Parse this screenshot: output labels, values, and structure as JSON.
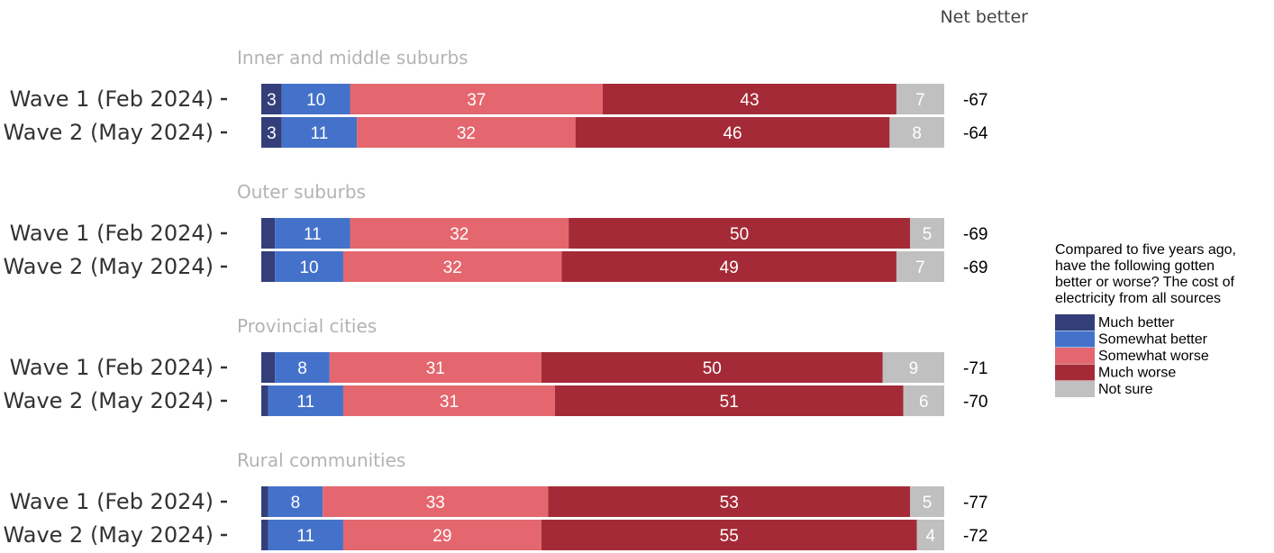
{
  "chart_data": {
    "type": "bar",
    "orientation": "horizontal",
    "stacked": true,
    "net_header": "Net better",
    "legend": {
      "title_lines": [
        "Compared to five years ago,",
        "have the following gotten",
        "better or worse? The cost of",
        "electricity from all sources"
      ],
      "placement": "right"
    },
    "series": [
      {
        "name": "Much better",
        "color": "#343f7a"
      },
      {
        "name": "Somewhat better",
        "color": "#4472ca"
      },
      {
        "name": "Somewhat worse",
        "color": "#e4676f"
      },
      {
        "name": "Much worse",
        "color": "#a52a37"
      },
      {
        "name": "Not sure",
        "color": "#c0c0c0"
      }
    ],
    "groups": [
      {
        "title": "Inner and middle suburbs",
        "rows": [
          {
            "label": "Wave 1 (Feb 2024)",
            "values": [
              3,
              10,
              37,
              43,
              7
            ],
            "net": "-67"
          },
          {
            "label": "Wave 2 (May 2024)",
            "values": [
              3,
              11,
              32,
              46,
              8
            ],
            "net": "-64"
          }
        ]
      },
      {
        "title": "Outer suburbs",
        "rows": [
          {
            "label": "Wave 1 (Feb 2024)",
            "values": [
              2,
              11,
              32,
              50,
              5
            ],
            "net": "-69"
          },
          {
            "label": "Wave 2 (May 2024)",
            "values": [
              2,
              10,
              32,
              49,
              7
            ],
            "net": "-69"
          }
        ]
      },
      {
        "title": "Provincial cities",
        "rows": [
          {
            "label": "Wave 1 (Feb 2024)",
            "values": [
              2,
              8,
              31,
              50,
              9
            ],
            "net": "-71"
          },
          {
            "label": "Wave 2 (May 2024)",
            "values": [
              1,
              11,
              31,
              51,
              6
            ],
            "net": "-70"
          }
        ]
      },
      {
        "title": "Rural communities",
        "rows": [
          {
            "label": "Wave 1 (Feb 2024)",
            "values": [
              1,
              8,
              33,
              53,
              5
            ],
            "net": "-77"
          },
          {
            "label": "Wave 2 (May 2024)",
            "values": [
              1,
              11,
              29,
              55,
              4
            ],
            "net": "-72"
          }
        ]
      }
    ],
    "label_threshold": 3
  }
}
